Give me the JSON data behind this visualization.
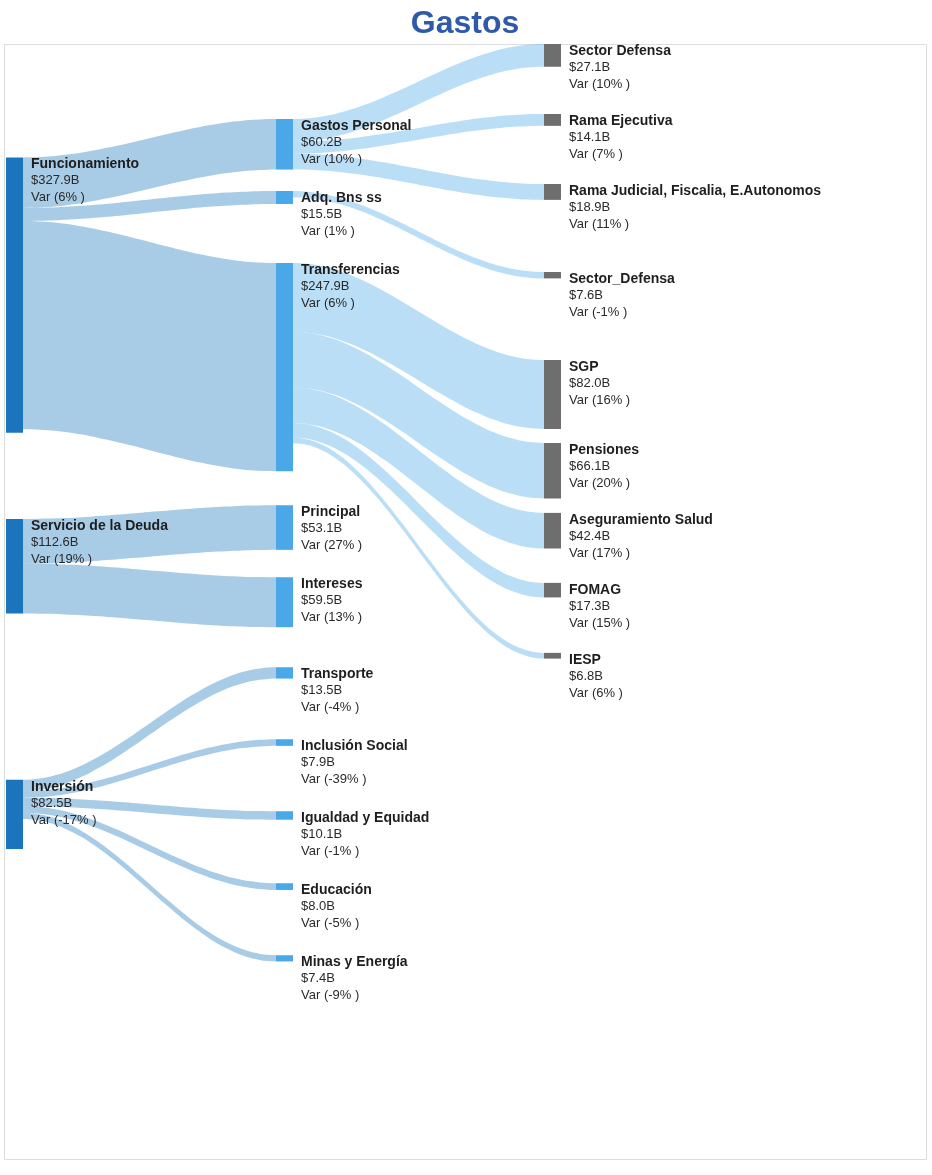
{
  "chart_data": {
    "type": "other",
    "title": "Gastos",
    "categories": [
      "Funcionamiento",
      "Servicio de la Deuda",
      "Inversión",
      "Gastos Personal",
      "Adq. Bns ss",
      "Transferencias",
      "Principal",
      "Intereses",
      "Transporte",
      "Inclusión Social",
      "Igualdad y Equidad",
      "Educación",
      "Minas y Energía",
      "Sector Defensa",
      "Rama Ejecutiva",
      "Rama Judicial, Fiscalia, E.Autonomos",
      "Sector_Defensa",
      "SGP",
      "Pensiones",
      "Aseguramiento Salud",
      "FOMAG",
      "IESP"
    ],
    "series": [
      {
        "color": "#1b75bc",
        "values": [
          327.9,
          112.6,
          82.5,
          null,
          null,
          null,
          null,
          null,
          null,
          null,
          null,
          null,
          null,
          null,
          null,
          null,
          null,
          null,
          null,
          null,
          null,
          null
        ],
        "value_labels": [
          "$327.9B",
          "$112.6B",
          "$82.5B",
          null,
          null,
          null,
          null,
          null,
          null,
          null,
          null,
          null,
          null,
          null,
          null,
          null,
          null,
          null,
          null,
          null,
          null,
          null
        ]
      },
      {
        "color": "#4aa8e8",
        "values": [
          null,
          null,
          null,
          60.2,
          15.5,
          247.9,
          53.1,
          59.5,
          13.5,
          7.9,
          10.1,
          8.0,
          7.4,
          null,
          null,
          null,
          null,
          null,
          null,
          null,
          null,
          null
        ],
        "value_labels": [
          null,
          null,
          null,
          "$60.2B",
          "$15.5B",
          "$247.9B",
          "$53.1B",
          "$59.5B",
          "$13.5B",
          "$7.9B",
          "$10.1B",
          "$8.0B",
          "$7.4B",
          null,
          null,
          null,
          null,
          null,
          null,
          null,
          null,
          null
        ]
      },
      {
        "color": "#6e6e6e",
        "values": [
          null,
          null,
          null,
          null,
          null,
          null,
          null,
          null,
          null,
          null,
          null,
          null,
          null,
          27.1,
          14.1,
          18.9,
          7.6,
          82.0,
          66.1,
          42.4,
          17.3,
          6.8
        ],
        "value_labels": [
          null,
          null,
          null,
          null,
          null,
          null,
          null,
          null,
          null,
          null,
          null,
          null,
          null,
          "$27.1B",
          "$14.1B",
          "$18.9B",
          "$7.6B",
          "$82.0B",
          "$66.1B",
          "$42.4B",
          "$17.3B",
          "$6.8B"
        ]
      }
    ],
    "annotations": [
      "Var (6% )",
      "Var (19% )",
      "Var (-17% )",
      "Var (10% )",
      "Var (1% )",
      "Var (6% )",
      "Var (27% )",
      "Var (13% )",
      "Var (-4% )",
      "Var (-39% )",
      "Var (-1% )",
      "Var (-5% )",
      "Var (-9% )",
      "Var (10% )",
      "Var (7% )",
      "Var (11% )",
      "Var (-1% )",
      "Var (16% )",
      "Var (20% )",
      "Var (17% )",
      "Var (15% )",
      "Var (6% )"
    ]
  }
}
